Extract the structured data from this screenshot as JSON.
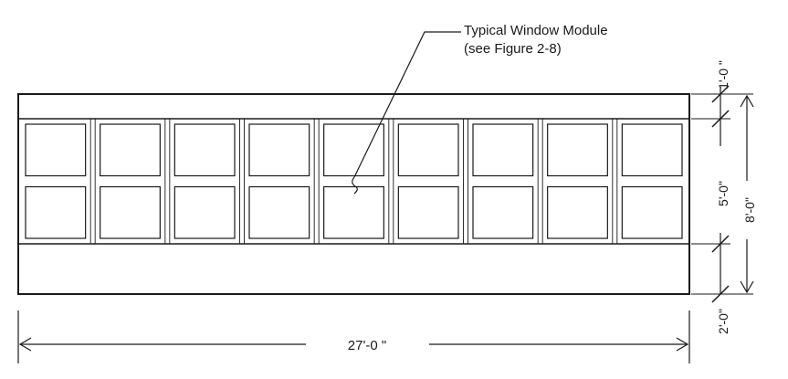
{
  "callout": {
    "line1": "Typical Window Module",
    "line2": "(see Figure 2-8)"
  },
  "dimensions": {
    "overall_width": "27'-0 \"",
    "top_band": "1'-0 \"",
    "window_height": "5'-0\"",
    "overall_height": "8'-0\"",
    "bottom_band": "2'-0\""
  },
  "window_grid": {
    "columns": 9,
    "rows": 2
  }
}
